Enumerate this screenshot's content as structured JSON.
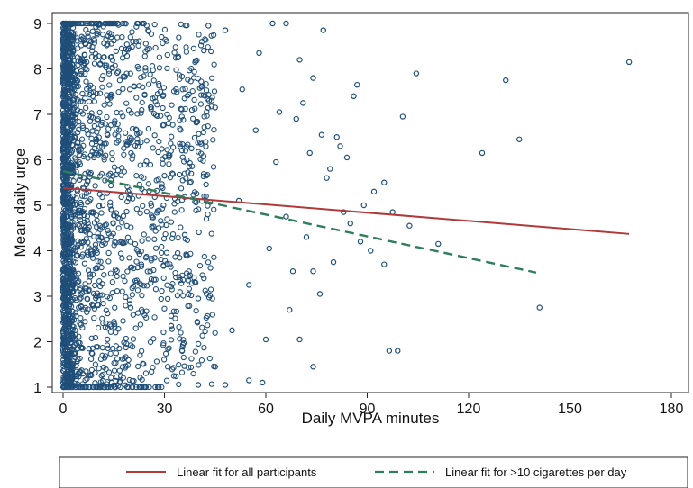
{
  "chart_data": {
    "type": "scatter",
    "xlabel": "Daily MVPA minutes",
    "ylabel": "Mean daily urge",
    "xlim": [
      0,
      180
    ],
    "ylim": [
      1,
      9
    ],
    "x_ticks": [
      0,
      30,
      60,
      90,
      120,
      150,
      180
    ],
    "y_ticks": [
      1,
      2,
      3,
      4,
      5,
      6,
      7,
      8,
      9
    ],
    "grid": false,
    "legend_position": "bottom",
    "colors": {
      "points": "#1f4e79",
      "fit_all": "#b03a3a",
      "fit_heavy": "#2e7d5b"
    },
    "series": [
      {
        "kind": "scatter",
        "points": [
          [
            167.5,
            8.15
          ],
          [
            131,
            7.75
          ],
          [
            104.5,
            7.9
          ],
          [
            100.5,
            6.95
          ],
          [
            135,
            6.45
          ],
          [
            124,
            6.15
          ],
          [
            141,
            2.75
          ],
          [
            95,
            3.7
          ],
          [
            96.5,
            1.8
          ],
          [
            99,
            1.8
          ],
          [
            111,
            4.15
          ],
          [
            102.5,
            4.55
          ],
          [
            97.5,
            4.85
          ],
          [
            88,
            4.2
          ],
          [
            89,
            5.0
          ],
          [
            87,
            7.65
          ],
          [
            86,
            7.4
          ],
          [
            81,
            6.5
          ],
          [
            84,
            6.05
          ],
          [
            82,
            6.3
          ],
          [
            79,
            5.8
          ],
          [
            77,
            8.85
          ],
          [
            74,
            7.8
          ],
          [
            76.5,
            6.55
          ],
          [
            74,
            1.45
          ],
          [
            76,
            3.05
          ],
          [
            74,
            3.55
          ],
          [
            70,
            2.05
          ],
          [
            67,
            2.7
          ],
          [
            62,
            9.0
          ],
          [
            66,
            9.0
          ],
          [
            64,
            7.05
          ],
          [
            70,
            8.2
          ],
          [
            60,
            2.05
          ],
          [
            59,
            1.1
          ],
          [
            55,
            1.15
          ],
          [
            48,
            1.05
          ],
          [
            45,
            1.45
          ],
          [
            40,
            1.05
          ],
          [
            85,
            4.6
          ],
          [
            92,
            5.3
          ],
          [
            95,
            5.5
          ],
          [
            91,
            4.0
          ],
          [
            83,
            4.85
          ],
          [
            80,
            3.75
          ],
          [
            78,
            5.6
          ],
          [
            72,
            4.3
          ],
          [
            69,
            6.9
          ],
          [
            68,
            3.55
          ],
          [
            61,
            4.05
          ],
          [
            63,
            5.95
          ],
          [
            57,
            6.65
          ],
          [
            53,
            7.55
          ],
          [
            55,
            3.25
          ],
          [
            50,
            2.25
          ],
          [
            48,
            8.85
          ],
          [
            45,
            7.15
          ],
          [
            43,
            8.95
          ],
          [
            40,
            2.95
          ],
          [
            38,
            6.25
          ],
          [
            36,
            4.35
          ],
          [
            34,
            8.25
          ],
          [
            32,
            2.35
          ],
          [
            30,
            5.65
          ],
          [
            28,
            7.45
          ],
          [
            52,
            5.1
          ],
          [
            58,
            8.35
          ],
          [
            71,
            7.25
          ],
          [
            73,
            6.15
          ],
          [
            66,
            4.75
          ]
        ]
      },
      {
        "kind": "line",
        "name": "Linear fit for all participants",
        "style": "solid",
        "points": [
          [
            0,
            5.38
          ],
          [
            167.5,
            4.37
          ]
        ]
      },
      {
        "kind": "line",
        "name": "Linear fit for >10 cigarettes per day",
        "style": "dashed",
        "points": [
          [
            0,
            5.75
          ],
          [
            140,
            3.52
          ]
        ]
      }
    ]
  }
}
